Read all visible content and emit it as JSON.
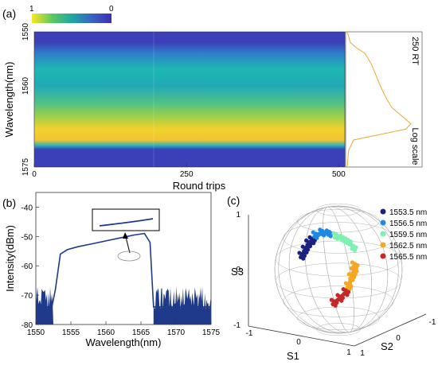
{
  "panels": {
    "a": "(a)",
    "b": "(b)",
    "c": "(c)"
  },
  "chart_data": [
    {
      "panel": "(a)",
      "type": "heatmap",
      "colorbar": {
        "min_label": "1",
        "max_label": "0"
      },
      "xlabel": "Round trips",
      "ylabel": "Wavelength(nm)",
      "x_ticks": [
        "0",
        "250",
        "500"
      ],
      "xlim": [
        0,
        510
      ],
      "y_ticks": [
        "1550",
        "1560",
        "1575"
      ],
      "ylim": [
        1550,
        1575
      ],
      "spectrum_profile": {
        "wavelength": [
          1550,
          1552,
          1553,
          1554,
          1556,
          1558,
          1560,
          1562,
          1564,
          1565,
          1566,
          1567,
          1568,
          1570,
          1572,
          1575
        ],
        "intensity": [
          0.0,
          0.05,
          0.15,
          0.28,
          0.38,
          0.45,
          0.52,
          0.6,
          0.7,
          0.8,
          0.9,
          1.0,
          0.92,
          0.1,
          0.02,
          0.0
        ]
      },
      "side_panel_label": "250 RT",
      "side_panel_scale": "Log scale"
    },
    {
      "panel": "(b)",
      "type": "line",
      "xlabel": "Wavelength(nm)",
      "ylabel": "Intensity(dBm)",
      "x_ticks": [
        "1550",
        "1555",
        "1560",
        "1565",
        "1570",
        "1575"
      ],
      "xlim": [
        1550,
        1575
      ],
      "y_ticks": [
        "-40",
        "-50",
        "-60",
        "-70",
        "-80"
      ],
      "ylim": [
        -80,
        -35
      ],
      "series": [
        {
          "color": "#1f3a8a",
          "x": [
            1550,
            1552.3,
            1552.8,
            1553.5,
            1554.5,
            1556,
            1558,
            1560,
            1562,
            1564,
            1565.5,
            1566.3,
            1566.8,
            1575
          ],
          "y": [
            -74,
            -74,
            -68,
            -56,
            -54.5,
            -53.5,
            -52.5,
            -51.5,
            -50.5,
            -49.5,
            -49,
            -52,
            -74,
            -74
          ]
        }
      ],
      "noise_floor": [
        -80,
        -67
      ]
    },
    {
      "panel": "(c)",
      "type": "scatter",
      "xlabel": "S1",
      "ylabel": "S3",
      "zlabel": "S2",
      "s1_ticks": [
        "-1",
        "0",
        "1"
      ],
      "s2_ticks": [
        "1",
        "0",
        "-1"
      ],
      "s3_ticks": [
        "1",
        "0",
        "-1"
      ],
      "series": [
        {
          "name": "1553.5 nm",
          "color": "#1a237e",
          "points": [
            [
              -0.55,
              0.2,
              0.25
            ],
            [
              -0.5,
              0.18,
              0.35
            ],
            [
              -0.45,
              0.15,
              0.45
            ],
            [
              -0.4,
              0.12,
              0.5
            ]
          ]
        },
        {
          "name": "1556.5 nm",
          "color": "#1e88e5",
          "points": [
            [
              -0.35,
              0.1,
              0.58
            ],
            [
              -0.25,
              0.05,
              0.62
            ],
            [
              -0.15,
              0.0,
              0.6
            ]
          ]
        },
        {
          "name": "1559.5 nm",
          "color": "#7ef0b0",
          "points": [
            [
              -0.05,
              -0.05,
              0.55
            ],
            [
              0.05,
              -0.1,
              0.5
            ],
            [
              0.12,
              -0.15,
              0.45
            ],
            [
              0.2,
              -0.18,
              0.35
            ]
          ]
        },
        {
          "name": "1562.5 nm",
          "color": "#f5a623",
          "points": [
            [
              0.22,
              -0.2,
              0.05
            ],
            [
              0.2,
              -0.22,
              -0.05
            ],
            [
              0.15,
              -0.25,
              -0.15
            ],
            [
              0.1,
              -0.25,
              -0.3
            ]
          ]
        },
        {
          "name": "1565.5 nm",
          "color": "#c62828",
          "points": [
            [
              0.05,
              -0.28,
              -0.4
            ],
            [
              -0.05,
              -0.3,
              -0.5
            ],
            [
              -0.15,
              -0.3,
              -0.58
            ]
          ]
        }
      ]
    }
  ]
}
